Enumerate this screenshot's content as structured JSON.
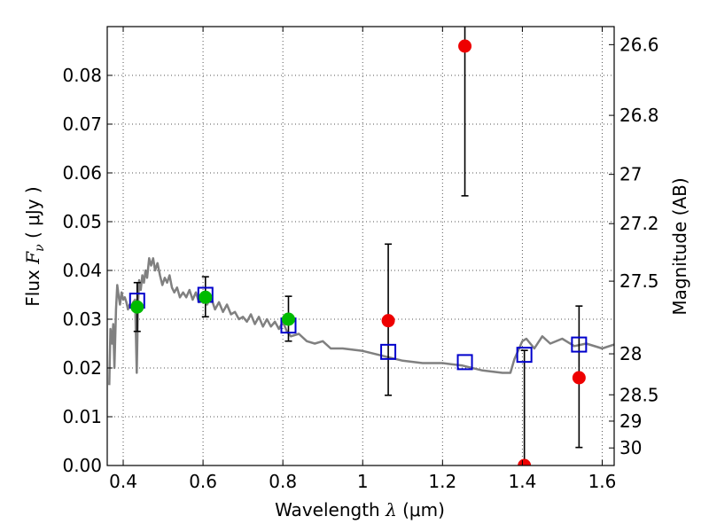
{
  "chart_data": {
    "type": "scatter",
    "xlabel": "Wavelength  λ (μm)",
    "ylabel": "Flux  Fν  ( μJy )",
    "ylabel_parts": {
      "prefix": "Flux  ",
      "symbol": "F",
      "subscript": "ν",
      "suffix": "  ( μJy )"
    },
    "xlabel_parts": {
      "prefix": "Wavelength  ",
      "symbol": "λ",
      "suffix": " (μm)"
    },
    "y2label": "Magnitude (AB)",
    "xlim": [
      0.36,
      1.63
    ],
    "ylim": [
      0.0,
      0.09
    ],
    "grid": true,
    "x_ticks": [
      {
        "value": 0.4,
        "label": "0.4"
      },
      {
        "value": 0.6,
        "label": "0.6"
      },
      {
        "value": 0.8,
        "label": "0.8"
      },
      {
        "value": 1.0,
        "label": "1"
      },
      {
        "value": 1.2,
        "label": "1.2"
      },
      {
        "value": 1.4,
        "label": "1.4"
      },
      {
        "value": 1.6,
        "label": "1.6"
      }
    ],
    "y_ticks": [
      {
        "value": 0.0,
        "label": "0.00"
      },
      {
        "value": 0.01,
        "label": "0.01"
      },
      {
        "value": 0.02,
        "label": "0.02"
      },
      {
        "value": 0.03,
        "label": "0.03"
      },
      {
        "value": 0.04,
        "label": "0.04"
      },
      {
        "value": 0.05,
        "label": "0.05"
      },
      {
        "value": 0.06,
        "label": "0.06"
      },
      {
        "value": 0.07,
        "label": "0.07"
      },
      {
        "value": 0.08,
        "label": "0.08"
      }
    ],
    "y2_ticks": [
      {
        "flux": 0.0863,
        "label": "26.6"
      },
      {
        "flux": 0.0718,
        "label": "26.8"
      },
      {
        "flux": 0.0597,
        "label": "27"
      },
      {
        "flux": 0.0496,
        "label": "27.2"
      },
      {
        "flux": 0.0378,
        "label": "27.5"
      },
      {
        "flux": 0.0229,
        "label": "28"
      },
      {
        "flux": 0.0145,
        "label": "28.5"
      },
      {
        "flux": 0.0091,
        "label": "29"
      },
      {
        "flux": 0.0036,
        "label": "30"
      }
    ],
    "colors": {
      "model": "#808080",
      "detection": "#00bb00",
      "nondetection": "#ee0000",
      "model_flux": "#0000cc",
      "errorbar": "#000000",
      "grid": "#555555"
    },
    "model_sed": {
      "x": [
        0.365,
        0.368,
        0.372,
        0.375,
        0.378,
        0.382,
        0.385,
        0.389,
        0.392,
        0.396,
        0.4,
        0.404,
        0.408,
        0.412,
        0.416,
        0.42,
        0.425,
        0.43,
        0.434,
        0.437,
        0.44,
        0.444,
        0.448,
        0.452,
        0.456,
        0.46,
        0.465,
        0.47,
        0.475,
        0.48,
        0.486,
        0.492,
        0.498,
        0.504,
        0.51,
        0.516,
        0.522,
        0.528,
        0.535,
        0.542,
        0.55,
        0.558,
        0.566,
        0.574,
        0.582,
        0.59,
        0.6,
        0.61,
        0.62,
        0.63,
        0.64,
        0.65,
        0.66,
        0.67,
        0.68,
        0.69,
        0.7,
        0.71,
        0.72,
        0.73,
        0.74,
        0.75,
        0.76,
        0.77,
        0.78,
        0.79,
        0.8,
        0.81,
        0.82,
        0.84,
        0.86,
        0.88,
        0.9,
        0.92,
        0.95,
        1.0,
        1.05,
        1.1,
        1.15,
        1.2,
        1.25,
        1.3,
        1.35,
        1.37,
        1.38,
        1.4,
        1.41,
        1.43,
        1.45,
        1.47,
        1.5,
        1.53,
        1.56,
        1.6,
        1.63
      ],
      "y": [
        0.0165,
        0.028,
        0.025,
        0.029,
        0.02,
        0.032,
        0.037,
        0.0345,
        0.033,
        0.0355,
        0.034,
        0.0345,
        0.0335,
        0.032,
        0.033,
        0.0325,
        0.0335,
        0.034,
        0.019,
        0.033,
        0.038,
        0.036,
        0.039,
        0.0375,
        0.04,
        0.0385,
        0.0425,
        0.041,
        0.0425,
        0.04,
        0.0415,
        0.039,
        0.037,
        0.0385,
        0.0375,
        0.039,
        0.0365,
        0.0355,
        0.0365,
        0.0345,
        0.0355,
        0.0345,
        0.036,
        0.034,
        0.0355,
        0.0335,
        0.035,
        0.033,
        0.0345,
        0.032,
        0.0335,
        0.0315,
        0.033,
        0.031,
        0.0315,
        0.03,
        0.0305,
        0.0295,
        0.031,
        0.029,
        0.0305,
        0.0285,
        0.03,
        0.0285,
        0.0295,
        0.028,
        0.0295,
        0.0275,
        0.0265,
        0.027,
        0.0255,
        0.025,
        0.0255,
        0.024,
        0.024,
        0.0235,
        0.0225,
        0.0215,
        0.021,
        0.021,
        0.0205,
        0.0195,
        0.019,
        0.019,
        0.0218,
        0.0255,
        0.026,
        0.024,
        0.0265,
        0.025,
        0.026,
        0.0245,
        0.025,
        0.024,
        0.0248
      ]
    },
    "observed": [
      {
        "x": 0.435,
        "y": 0.0325,
        "err_low": 0.0275,
        "err_high": 0.0375,
        "kind": "detection"
      },
      {
        "x": 0.606,
        "y": 0.0345,
        "err_low": 0.0305,
        "err_high": 0.0387,
        "kind": "detection"
      },
      {
        "x": 0.814,
        "y": 0.03,
        "err_low": 0.0255,
        "err_high": 0.0347,
        "kind": "detection"
      },
      {
        "x": 1.064,
        "y": 0.0297,
        "err_low": 0.0144,
        "err_high": 0.0454,
        "kind": "nondetection"
      },
      {
        "x": 1.256,
        "y": 0.086,
        "err_low": 0.0553,
        "err_high": 0.092,
        "kind": "nondetection"
      },
      {
        "x": 1.405,
        "y": 0.0,
        "err_low": 0.0,
        "err_high": 0.0236,
        "kind": "nondetection"
      },
      {
        "x": 1.542,
        "y": 0.018,
        "err_low": 0.0037,
        "err_high": 0.0327,
        "kind": "nondetection"
      }
    ],
    "model_flux": [
      {
        "x": 0.435,
        "y": 0.0338
      },
      {
        "x": 0.606,
        "y": 0.035
      },
      {
        "x": 0.814,
        "y": 0.0287
      },
      {
        "x": 1.064,
        "y": 0.0233
      },
      {
        "x": 1.256,
        "y": 0.0212
      },
      {
        "x": 1.405,
        "y": 0.0227
      },
      {
        "x": 1.542,
        "y": 0.0248
      }
    ]
  }
}
